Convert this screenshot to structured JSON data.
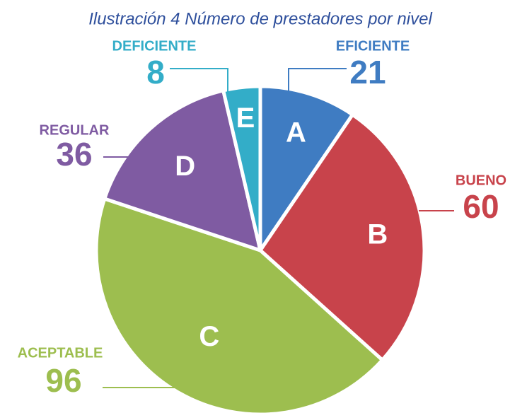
{
  "chart_data": {
    "type": "pie",
    "title": "Ilustración 4 Número de prestadores por nivel",
    "categories": [
      "EFICIENTE",
      "BUENO",
      "ACEPTABLE",
      "REGULAR",
      "DEFICIENTE"
    ],
    "slice_labels": [
      "A",
      "B",
      "C",
      "D",
      "E"
    ],
    "values": [
      21,
      60,
      96,
      36,
      8
    ],
    "colors": [
      "#3f7cc2",
      "#c8434b",
      "#9dbe4f",
      "#7f5ba2",
      "#33adc8"
    ]
  }
}
